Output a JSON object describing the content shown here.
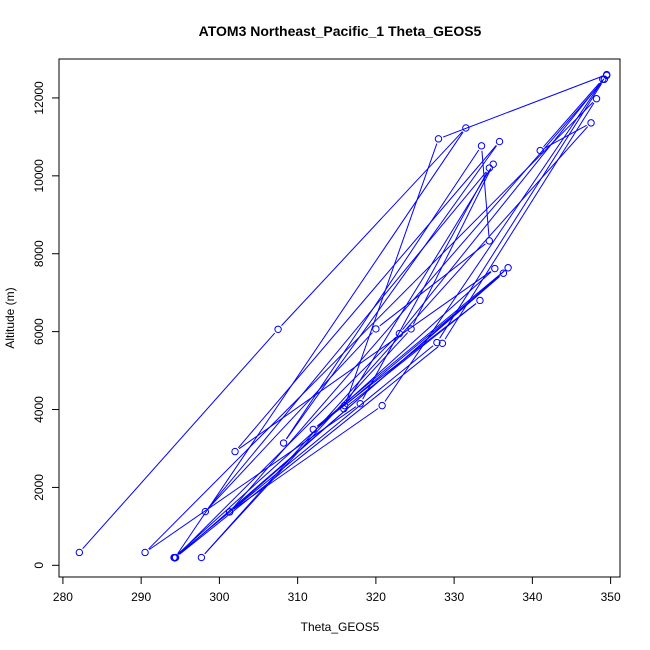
{
  "chart_data": {
    "type": "line",
    "title": "ATOM3 Northeast_Pacific_1 Theta_GEOS5",
    "xlabel": "Theta_GEOS5",
    "ylabel": "Altitude (m)",
    "xlim": [
      279.5,
      351.2
    ],
    "ylim": [
      -300,
      13000
    ],
    "xticks": [
      280,
      290,
      300,
      310,
      320,
      330,
      340,
      350
    ],
    "yticks": [
      0,
      2000,
      4000,
      6000,
      8000,
      10000,
      12000
    ],
    "grid": false,
    "legend": "none",
    "colors": {
      "series": "#0000ff",
      "axes": "#000000"
    },
    "series": [
      {
        "x": [
          282.1,
          307.5,
          331.5,
          294.3,
          323.0,
          349.5,
          349.0,
          341.0,
          347.5,
          297.7,
          324.5,
          335.0,
          316.0,
          336.3,
          294.4,
          328.5,
          348.2,
          290.5,
          318.0,
          334.5,
          298.2,
          320.0,
          334.5,
          333.5,
          308.2,
          335.8,
          302.0,
          335.2,
          294.2,
          327.8,
          349.2,
          301.3,
          336.9,
          312.0,
          333.3,
          315.9,
          328.0,
          349.5,
          320.8,
          301.3
        ],
        "y": [
          330,
          6060,
          11230,
          190,
          5950,
          12580,
          12480,
          10650,
          11360,
          200,
          6070,
          10300,
          4100,
          7500,
          200,
          5700,
          11980,
          330,
          4150,
          10200,
          1380,
          6070,
          8330,
          10770,
          3140,
          10880,
          2920,
          7620,
          200,
          5720,
          12480,
          1370,
          7640,
          3490,
          6800,
          4020,
          10950,
          12600,
          4100,
          1370
        ]
      }
    ]
  }
}
